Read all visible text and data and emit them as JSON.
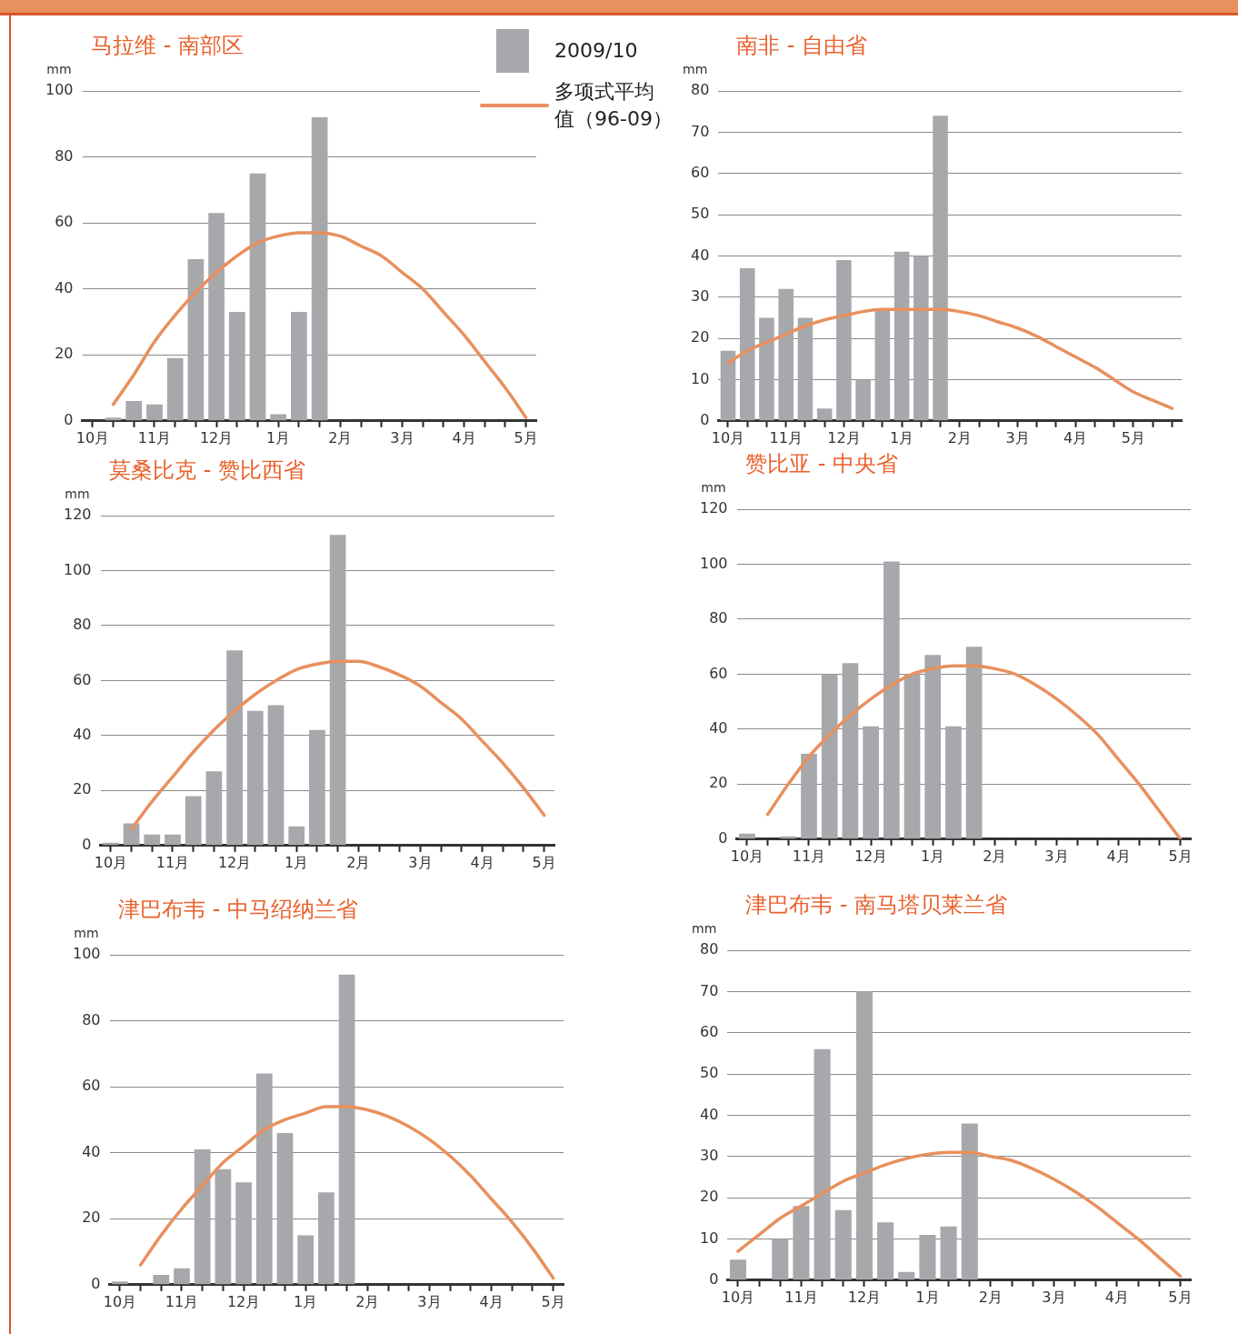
{
  "chart_data": [
    {
      "type": "bar",
      "title": "马拉维 - 南部区",
      "ylabel": "mm",
      "legend": "top right",
      "grid": "y",
      "marker": "none",
      "categories": [
        "10月",
        null,
        null,
        "11月",
        null,
        null,
        "12月",
        null,
        null,
        "1月",
        null,
        null,
        "2月",
        null,
        null,
        "3月",
        null,
        null,
        "4月",
        null,
        null,
        "5月"
      ],
      "ylim": [
        0,
        100
      ],
      "yticks": [
        0,
        20,
        40,
        60,
        80,
        100
      ],
      "series": [
        {
          "name": "2009/10",
          "type": "bar",
          "color": "#a7a8ab",
          "values": [
            0,
            1,
            6,
            5,
            19,
            49,
            63,
            33,
            75,
            2,
            33,
            92,
            null,
            null,
            null,
            null,
            null,
            null,
            null,
            null,
            null,
            null
          ]
        },
        {
          "name": "多项式平均值（96-09）",
          "type": "line",
          "color": "#e8905e",
          "values": [
            null,
            5,
            14,
            24,
            32,
            39,
            45,
            50,
            54,
            56,
            57,
            57,
            56,
            53,
            50,
            45,
            40,
            33,
            26,
            18,
            10,
            1
          ]
        }
      ]
    },
    {
      "type": "bar",
      "title": "南非 - 自由省",
      "ylabel": "mm",
      "grid": "y",
      "marker": "none",
      "categories": [
        "10月",
        null,
        null,
        "11月",
        null,
        null,
        "12月",
        null,
        null,
        "1月",
        null,
        null,
        "2月",
        null,
        null,
        "3月",
        null,
        null,
        "4月",
        null,
        null,
        "5月",
        null,
        null
      ],
      "ylim": [
        0,
        80
      ],
      "yticks": [
        0,
        10,
        20,
        30,
        40,
        50,
        60,
        70,
        80
      ],
      "series": [
        {
          "type": "bar",
          "color": "#a7a8ab",
          "values": [
            17,
            37,
            25,
            32,
            25,
            3,
            39,
            10,
            27,
            41,
            40,
            74,
            null,
            null,
            null,
            null,
            null,
            null,
            null,
            null,
            null,
            null,
            null,
            null
          ]
        },
        {
          "type": "line",
          "color": "#e8905e",
          "values": [
            14,
            17,
            19,
            21,
            23,
            24.5,
            25.5,
            26.5,
            27,
            27,
            27,
            27,
            26.5,
            25.5,
            24,
            22.5,
            20.5,
            18,
            15.5,
            13,
            10,
            7,
            5,
            3
          ]
        }
      ]
    },
    {
      "type": "bar",
      "title": "莫桑比克 - 赞比西省",
      "ylabel": "mm",
      "grid": "y",
      "marker": "none",
      "categories": [
        "10月",
        null,
        null,
        "11月",
        null,
        null,
        "12月",
        null,
        null,
        "1月",
        null,
        null,
        "2月",
        null,
        null,
        "3月",
        null,
        null,
        "4月",
        null,
        null,
        "5月"
      ],
      "ylim": [
        0,
        120
      ],
      "yticks": [
        0,
        20,
        40,
        60,
        80,
        100,
        120
      ],
      "series": [
        {
          "type": "bar",
          "color": "#a7a8ab",
          "values": [
            1,
            8,
            4,
            4,
            18,
            27,
            71,
            49,
            51,
            7,
            42,
            113,
            null,
            null,
            null,
            null,
            null,
            null,
            null,
            null,
            null,
            null
          ]
        },
        {
          "type": "line",
          "color": "#e8905e",
          "values": [
            null,
            6,
            16,
            25,
            34,
            42,
            49,
            55,
            60,
            64,
            66,
            67,
            67,
            65,
            62,
            58,
            52,
            46,
            38,
            30,
            21,
            11
          ]
        }
      ]
    },
    {
      "type": "bar",
      "title": "赞比亚 - 中央省",
      "ylabel": "mm",
      "grid": "y",
      "marker": "none",
      "categories": [
        "10月",
        null,
        null,
        "11月",
        null,
        null,
        "12月",
        null,
        null,
        "1月",
        null,
        null,
        "2月",
        null,
        null,
        "3月",
        null,
        null,
        "4月",
        null,
        null,
        "5月"
      ],
      "ylim": [
        0,
        120
      ],
      "yticks": [
        0,
        20,
        40,
        60,
        80,
        100,
        120
      ],
      "series": [
        {
          "type": "bar",
          "color": "#a7a8ab",
          "values": [
            2,
            0,
            1,
            31,
            60,
            64,
            41,
            101,
            60,
            67,
            41,
            70,
            null,
            null,
            null,
            null,
            null,
            null,
            null,
            null,
            null,
            null
          ]
        },
        {
          "type": "line",
          "color": "#e8905e",
          "values": [
            null,
            9,
            20,
            30,
            38,
            45,
            51,
            56,
            60,
            62,
            63,
            63,
            62,
            60,
            56,
            51,
            45,
            38,
            29,
            20,
            10,
            0
          ]
        }
      ]
    },
    {
      "type": "bar",
      "title": "津巴布韦 - 中马绍纳兰省",
      "ylabel": "mm",
      "grid": "y",
      "marker": "none",
      "categories": [
        "10月",
        null,
        null,
        "11月",
        null,
        null,
        "12月",
        null,
        null,
        "1月",
        null,
        null,
        "2月",
        null,
        null,
        "3月",
        null,
        null,
        "4月",
        null,
        null,
        "5月"
      ],
      "ylim": [
        0,
        100
      ],
      "yticks": [
        0,
        20,
        40,
        60,
        80,
        100
      ],
      "series": [
        {
          "type": "bar",
          "color": "#a7a8ab",
          "values": [
            1,
            0,
            3,
            5,
            41,
            35,
            31,
            64,
            46,
            15,
            28,
            94,
            null,
            null,
            null,
            null,
            null,
            null,
            null,
            null,
            null,
            null
          ]
        },
        {
          "type": "line",
          "color": "#e8905e",
          "values": [
            null,
            6,
            15,
            23,
            30,
            37,
            42,
            47,
            50,
            52,
            54,
            54,
            53,
            51,
            48,
            44,
            39,
            33,
            26,
            19,
            11,
            2
          ]
        }
      ]
    },
    {
      "type": "bar",
      "title": "津巴布韦 - 南马塔贝莱兰省",
      "ylabel": "mm",
      "grid": "y",
      "marker": "none",
      "categories": [
        "10月",
        null,
        null,
        "11月",
        null,
        null,
        "12月",
        null,
        null,
        "1月",
        null,
        null,
        "2月",
        null,
        null,
        "3月",
        null,
        null,
        "4月",
        null,
        null,
        "5月"
      ],
      "ylim": [
        0,
        80
      ],
      "yticks": [
        0,
        10,
        20,
        30,
        40,
        50,
        60,
        70,
        80
      ],
      "series": [
        {
          "type": "bar",
          "color": "#a7a8ab",
          "values": [
            5,
            0,
            10,
            18,
            56,
            17,
            70,
            14,
            2,
            11,
            13,
            38,
            null,
            null,
            null,
            null,
            null,
            null,
            null,
            null,
            null,
            null
          ]
        },
        {
          "type": "line",
          "color": "#e8905e",
          "values": [
            7,
            11,
            15,
            18,
            21,
            24,
            26,
            28,
            29.5,
            30.5,
            31,
            31,
            30,
            29,
            27,
            24.5,
            21.5,
            18,
            14,
            10,
            5.5,
            1
          ]
        }
      ]
    }
  ]
}
